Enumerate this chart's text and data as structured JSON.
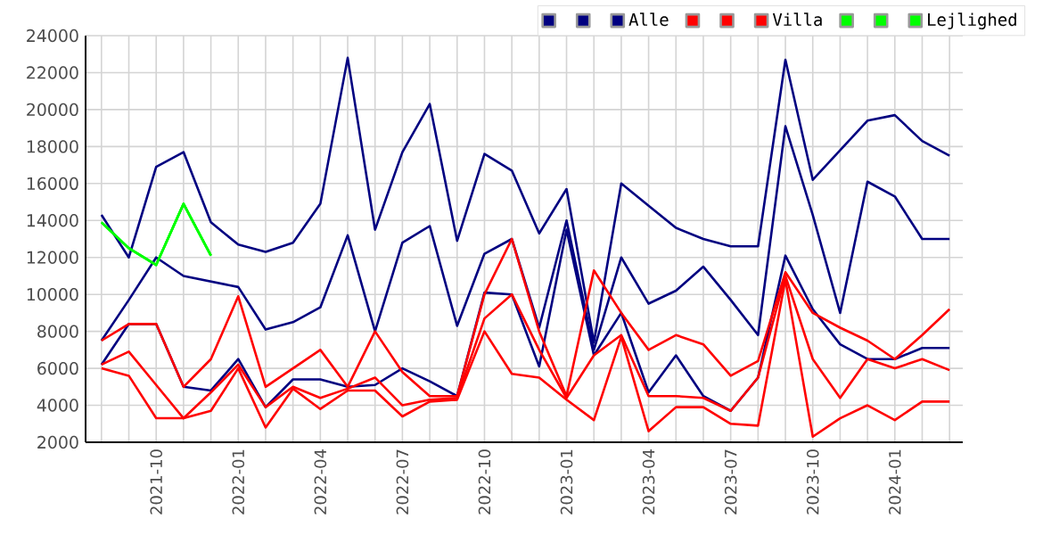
{
  "chart_data": {
    "type": "line",
    "grid": true,
    "legend": "top right",
    "xlim": [
      "2021-07-14",
      "2024-03-16"
    ],
    "ylim": [
      2000,
      24000
    ],
    "yticks": [
      2000,
      4000,
      6000,
      8000,
      10000,
      12000,
      14000,
      16000,
      18000,
      20000,
      22000,
      24000
    ],
    "xticks": [
      {
        "value": "2021-08",
        "label": null
      },
      {
        "value": "2021-09",
        "label": null
      },
      {
        "value": "2021-10",
        "label": "2021-10"
      },
      {
        "value": "2021-11",
        "label": null
      },
      {
        "value": "2021-12",
        "label": null
      },
      {
        "value": "2022-01",
        "label": "2022-01"
      },
      {
        "value": "2022-02",
        "label": null
      },
      {
        "value": "2022-03",
        "label": null
      },
      {
        "value": "2022-04",
        "label": "2022-04"
      },
      {
        "value": "2022-05",
        "label": null
      },
      {
        "value": "2022-06",
        "label": null
      },
      {
        "value": "2022-07",
        "label": "2022-07"
      },
      {
        "value": "2022-08",
        "label": null
      },
      {
        "value": "2022-09",
        "label": null
      },
      {
        "value": "2022-10",
        "label": "2022-10"
      },
      {
        "value": "2022-11",
        "label": null
      },
      {
        "value": "2022-12",
        "label": null
      },
      {
        "value": "2023-01",
        "label": "2023-01"
      },
      {
        "value": "2023-02",
        "label": null
      },
      {
        "value": "2023-03",
        "label": null
      },
      {
        "value": "2023-04",
        "label": "2023-04"
      },
      {
        "value": "2023-05",
        "label": null
      },
      {
        "value": "2023-06",
        "label": null
      },
      {
        "value": "2023-07",
        "label": "2023-07"
      },
      {
        "value": "2023-08",
        "label": null
      },
      {
        "value": "2023-09",
        "label": null
      },
      {
        "value": "2023-10",
        "label": "2023-10"
      },
      {
        "value": "2023-11",
        "label": null
      },
      {
        "value": "2023-12",
        "label": null
      },
      {
        "value": "2024-01",
        "label": "2024-01"
      },
      {
        "value": "2024-02",
        "label": null
      },
      {
        "value": "2024-03",
        "label": null
      }
    ],
    "x": [
      "2021-08",
      "2021-09",
      "2021-10",
      "2021-11",
      "2021-12",
      "2022-01",
      "2022-02",
      "2022-03",
      "2022-04",
      "2022-05",
      "2022-06",
      "2022-07",
      "2022-08",
      "2022-09",
      "2022-10",
      "2022-11",
      "2022-12",
      "2023-01",
      "2023-02",
      "2023-03",
      "2023-04",
      "2023-05",
      "2023-06",
      "2023-07",
      "2023-08",
      "2023-09",
      "2023-10",
      "2023-11",
      "2023-12",
      "2024-01",
      "2024-02",
      "2024-03"
    ],
    "series": [
      {
        "color": "#000080",
        "values": [
          14300,
          12000,
          16900,
          17700,
          13900,
          12700,
          12300,
          12800,
          14900,
          22800,
          13500,
          17700,
          20300,
          12900,
          17600,
          16700,
          13300,
          15700,
          7400,
          16000,
          14800,
          13600,
          13000,
          12600,
          12600,
          22700,
          16200,
          17800,
          19400,
          19700,
          18300,
          17500
        ]
      },
      {
        "color": "#000080",
        "values": [
          7500,
          9700,
          12000,
          11000,
          10700,
          10400,
          8100,
          8500,
          9300,
          13200,
          8000,
          12800,
          13700,
          8300,
          12200,
          13000,
          8200,
          14000,
          7000,
          12000,
          9500,
          10200,
          11500,
          9700,
          7800,
          19100,
          14300,
          9000,
          16100,
          15300,
          13000,
          13000
        ]
      },
      {
        "name": "Alle",
        "color": "#000080",
        "values": [
          6200,
          8400,
          8400,
          5000,
          4800,
          6500,
          3900,
          5400,
          5400,
          5000,
          5100,
          6000,
          5300,
          4500,
          10100,
          10000,
          6100,
          13500,
          6700,
          9000,
          4700,
          6700,
          4500,
          3700,
          5500,
          12100,
          9200,
          7300,
          6500,
          6500,
          7100,
          7100
        ]
      },
      {
        "color": "#ff0000",
        "values": [
          7500,
          8400,
          8400,
          5000,
          6500,
          9900,
          5000,
          6000,
          7000,
          5000,
          8000,
          5800,
          4500,
          4500,
          10000,
          13000,
          8000,
          4500,
          11300,
          9000,
          7000,
          7800,
          7300,
          5600,
          6400,
          11200,
          9000,
          8200,
          7500,
          6500,
          7800,
          9200
        ]
      },
      {
        "color": "#ff0000",
        "values": [
          6200,
          6900,
          5100,
          3300,
          4700,
          6200,
          3900,
          5000,
          4400,
          4900,
          5500,
          4000,
          4300,
          4400,
          8700,
          10000,
          7000,
          4400,
          6700,
          7800,
          4500,
          4500,
          4400,
          3700,
          5500,
          11000,
          6500,
          4400,
          6500,
          6000,
          6500,
          5900
        ]
      },
      {
        "name": "Villa",
        "color": "#ff0000",
        "values": [
          6000,
          5600,
          3300,
          3300,
          3700,
          6000,
          2800,
          4900,
          3800,
          4800,
          4800,
          3400,
          4200,
          4300,
          8000,
          5700,
          5500,
          4300,
          3200,
          7700,
          2600,
          3900,
          3900,
          3000,
          2900,
          10800,
          2300,
          3300,
          4000,
          3200,
          4200,
          4200
        ]
      },
      {
        "color": "#00ff00",
        "values": [
          13900,
          12500,
          11600,
          14900,
          12100,
          null,
          null,
          null,
          null,
          null,
          null,
          null,
          null,
          null,
          null,
          null,
          null,
          null,
          null,
          null,
          null,
          null,
          null,
          null,
          null,
          null,
          null,
          null,
          null,
          null,
          null,
          null
        ]
      },
      {
        "color": "#00ff00",
        "values": [
          13900,
          12500,
          11600,
          14900,
          12100,
          null,
          null,
          null,
          null,
          null,
          null,
          null,
          null,
          null,
          null,
          null,
          null,
          null,
          null,
          null,
          null,
          null,
          null,
          null,
          null,
          null,
          null,
          null,
          null,
          null,
          null,
          null
        ]
      },
      {
        "name": "Lejlighed",
        "color": "#00ff00",
        "values": [
          13900,
          12500,
          11600,
          14900,
          12100,
          null,
          null,
          null,
          null,
          null,
          null,
          null,
          null,
          null,
          null,
          null,
          null,
          null,
          null,
          null,
          null,
          null,
          null,
          null,
          null,
          null,
          null,
          null,
          null,
          null,
          null,
          null
        ]
      }
    ]
  }
}
